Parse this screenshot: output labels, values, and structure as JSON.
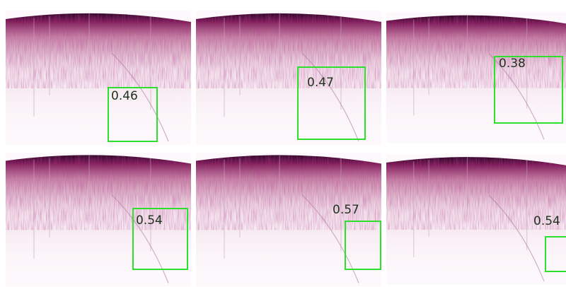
{
  "panels": [
    {
      "score": "0.46"
    },
    {
      "score": "0.47"
    },
    {
      "score": "0.38"
    },
    {
      "score": "0.54"
    },
    {
      "score": "0.57"
    },
    {
      "score": "0.54"
    }
  ]
}
